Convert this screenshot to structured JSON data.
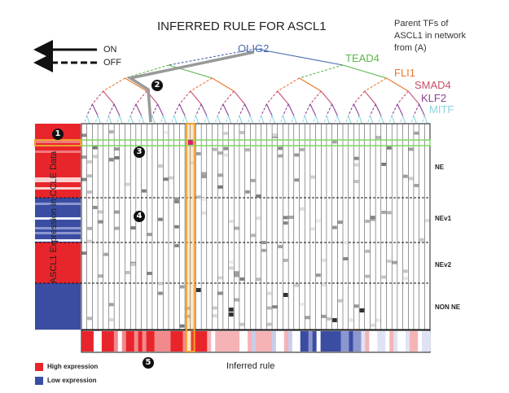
{
  "title": "INFERRED RULE FOR ASCL1",
  "parent_caption": "Parent TFs of\nASCL1 in network\nfrom (A)",
  "legend_arrows": {
    "on": "ON",
    "off": "OFF"
  },
  "parent_tfs": [
    {
      "name": "OLIG2",
      "color": "#4a69b0"
    },
    {
      "name": "TEAD4",
      "color": "#5bb84a"
    },
    {
      "name": "FLI1",
      "color": "#e8782f"
    },
    {
      "name": "SMAD4",
      "color": "#c7506a"
    },
    {
      "name": "KLF2",
      "color": "#8c3f97"
    },
    {
      "name": "MITF",
      "color": "#8fd3e0"
    }
  ],
  "groups": [
    "NE",
    "NEv1",
    "NEv2",
    "NON NE"
  ],
  "y_axis_label": "ASCL1 Expression in CCLE Data",
  "x_axis_label": "Inferred rule",
  "legend": {
    "high": "High expression",
    "low": "Low expression"
  },
  "colors": {
    "high": "#e8252b",
    "low": "#3a4da3",
    "highlight": "#f0a030",
    "row_highlight": "#7fd660"
  },
  "markers": [
    "1",
    "2",
    "3",
    "4",
    "5"
  ]
}
